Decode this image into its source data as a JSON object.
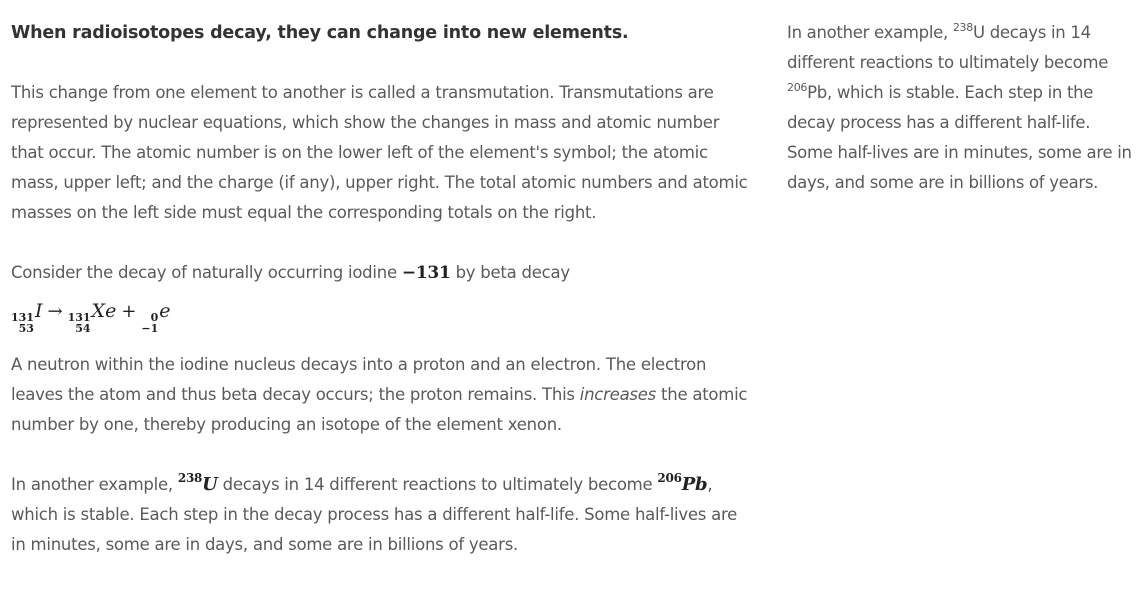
{
  "main": {
    "heading": "When radioisotopes decay, they can change into new elements.",
    "paragraph1": "This change from one element to another is called a transmutation. Transmutations are represented by nuclear equations, which show the changes in mass and atomic number that occur. The atomic number is on the lower left of the element's symbol; the atomic mass, upper left; and the charge (if any), upper right. The total atomic numbers and atomic masses on the left side must equal the corresponding totals on the right.",
    "consider_text": "Consider the decay of naturally occurring iodine ",
    "consider_math": "−131",
    "consider_tail": " by beta decay",
    "equation": {
      "reactant": {
        "mass": "131",
        "number": "53",
        "symbol": "I"
      },
      "arrow": "→",
      "product1": {
        "mass": "131",
        "number": "54",
        "symbol": "Xe"
      },
      "plus": "+",
      "product2": {
        "mass": "0",
        "number": "−1",
        "symbol": "e"
      }
    },
    "paragraph3_start": "A neutron within the iodine nucleus decays into a proton and an electron. The electron leaves the atom and thus beta decay occurs; the proton remains. This ",
    "paragraph3_em": "increases",
    "paragraph3_end": " the atomic number by one, thereby producing an isotope of the element xenon.",
    "paragraph4_start": "In another example, ",
    "paragraph4_u_mass": "238",
    "paragraph4_u_symbol": "U",
    "paragraph4_mid": " decays in 14 different reactions to ultimately become ",
    "paragraph4_pb_mass": "206",
    "paragraph4_pb_symbol": "Pb",
    "paragraph4_end": ", which is stable. Each step in the decay process has a different half-life. Some half-lives are in minutes, some are in days, and some are in billions of years."
  },
  "aside": {
    "start": "In another example, ",
    "u_mass": "238",
    "u_symbol": "U",
    "mid": " decays in 14 different reactions to ultimately become ",
    "pb_mass": "206",
    "pb_symbol": "Pb",
    "end": ", which is stable. Each step in the decay process has a different half-life. Some half-lives are in minutes, some are in days, and some are in billions of years."
  }
}
